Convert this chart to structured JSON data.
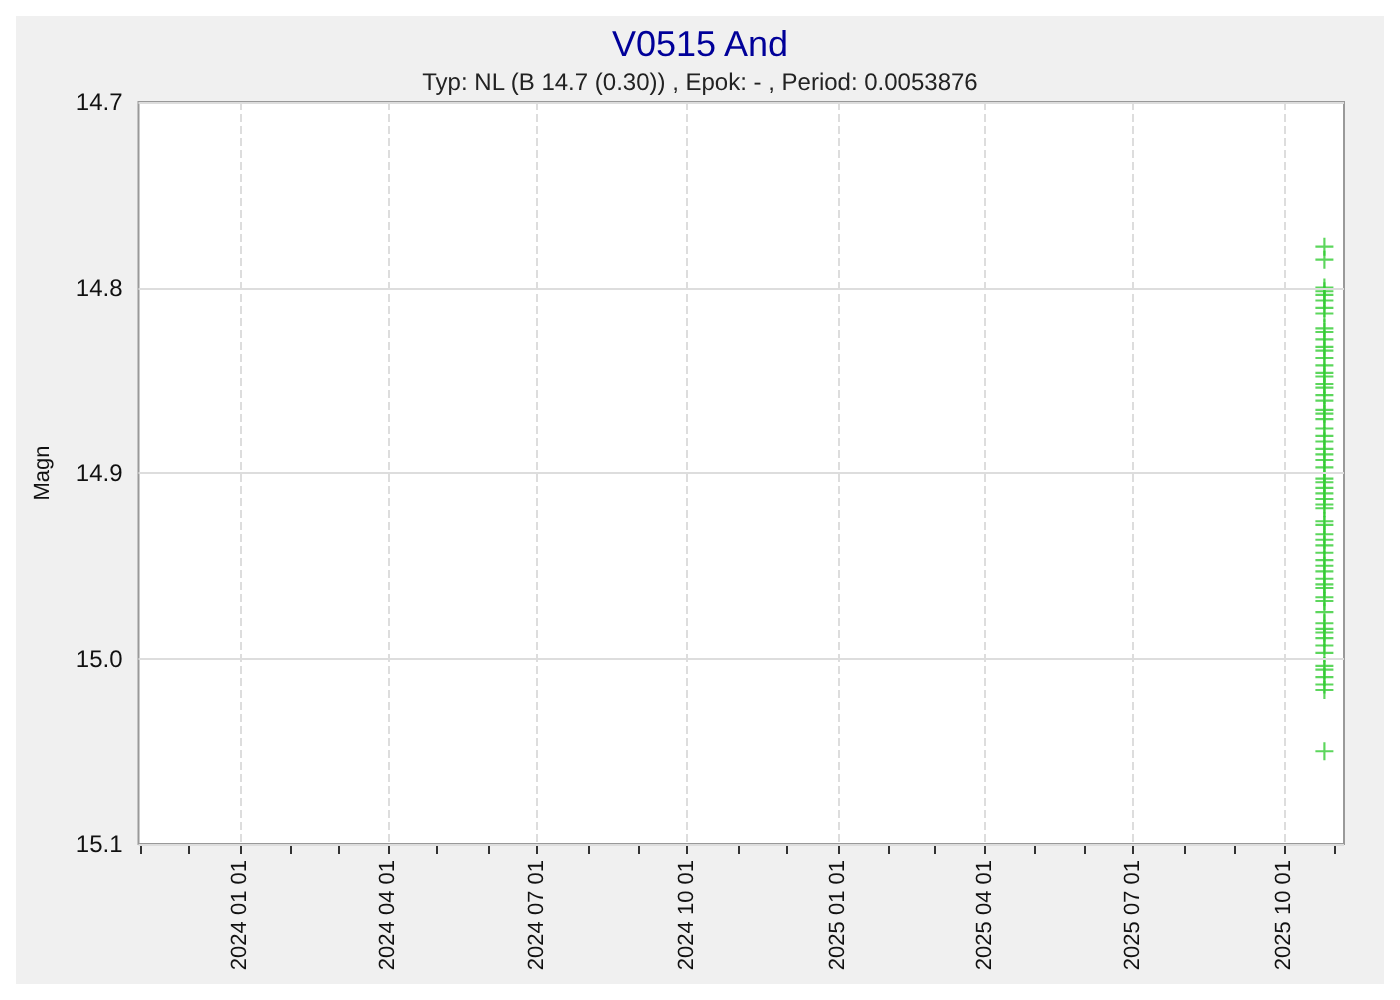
{
  "chart_data": {
    "type": "scatter",
    "title": "V0515 And",
    "subtitle": "Typ: NL (B 14.7 (0.30)) , Epok: - , Period: 0.0053876",
    "ylabel": "Magn",
    "x": [
      "2025-10-26",
      "2025-10-26",
      "2025-10-26",
      "2025-10-26",
      "2025-10-26",
      "2025-10-26",
      "2025-10-26",
      "2025-10-26",
      "2025-10-26",
      "2025-10-26",
      "2025-10-26",
      "2025-10-26",
      "2025-10-26",
      "2025-10-26",
      "2025-10-26",
      "2025-10-26",
      "2025-10-26",
      "2025-10-26",
      "2025-10-26",
      "2025-10-26",
      "2025-10-26",
      "2025-10-26",
      "2025-10-26",
      "2025-10-26",
      "2025-10-26",
      "2025-10-26",
      "2025-10-26",
      "2025-10-26",
      "2025-10-26",
      "2025-10-26",
      "2025-10-26",
      "2025-10-26",
      "2025-10-26",
      "2025-10-26",
      "2025-10-26",
      "2025-10-26",
      "2025-10-26",
      "2025-10-26",
      "2025-10-26",
      "2025-10-26",
      "2025-10-26",
      "2025-10-26",
      "2025-10-26",
      "2025-10-26",
      "2025-10-26",
      "2025-10-26",
      "2025-10-26",
      "2025-10-26",
      "2025-10-26",
      "2025-10-26",
      "2025-10-26",
      "2025-10-26",
      "2025-10-26",
      "2025-10-26",
      "2025-10-26",
      "2025-10-26",
      "2025-10-26",
      "2025-10-26",
      "2025-10-26",
      "2025-10-26",
      "2025-10-26",
      "2025-10-26",
      "2025-10-26",
      "2025-10-26",
      "2025-10-26",
      "2025-10-26"
    ],
    "values": [
      14.778,
      14.785,
      14.8,
      14.802,
      14.804,
      14.807,
      14.811,
      14.814,
      14.822,
      14.824,
      14.828,
      14.832,
      14.834,
      14.838,
      14.842,
      14.846,
      14.848,
      14.852,
      14.854,
      14.858,
      14.861,
      14.866,
      14.868,
      14.871,
      14.876,
      14.88,
      14.883,
      14.887,
      14.89,
      14.893,
      14.897,
      14.9,
      14.903,
      14.905,
      14.908,
      14.911,
      14.914,
      14.917,
      14.919,
      14.926,
      14.928,
      14.933,
      14.936,
      14.939,
      14.943,
      14.947,
      14.95,
      14.953,
      14.957,
      14.96,
      14.962,
      14.967,
      14.969,
      14.975,
      14.981,
      14.984,
      14.986,
      14.989,
      14.993,
      14.997,
      15.004,
      15.006,
      15.01,
      15.014,
      15.017,
      15.05
    ],
    "color": "#33cc33",
    "marker": "cross",
    "grid": true,
    "xlim": [
      "2023-10-31",
      "2025-11-07"
    ],
    "xticks": [
      {
        "value": "2023-11-01",
        "label": null
      },
      {
        "value": "2023-12-01",
        "label": null
      },
      {
        "value": "2024-01-01",
        "label": "2024 01 01"
      },
      {
        "value": "2024-02-01",
        "label": null
      },
      {
        "value": "2024-03-01",
        "label": null
      },
      {
        "value": "2024-04-01",
        "label": "2024 04 01"
      },
      {
        "value": "2024-05-01",
        "label": null
      },
      {
        "value": "2024-06-01",
        "label": null
      },
      {
        "value": "2024-07-01",
        "label": "2024 07 01"
      },
      {
        "value": "2024-08-01",
        "label": null
      },
      {
        "value": "2024-09-01",
        "label": null
      },
      {
        "value": "2024-10-01",
        "label": "2024 10 01"
      },
      {
        "value": "2024-11-01",
        "label": null
      },
      {
        "value": "2024-12-01",
        "label": null
      },
      {
        "value": "2025-01-01",
        "label": "2025 01 01"
      },
      {
        "value": "2025-02-01",
        "label": null
      },
      {
        "value": "2025-03-01",
        "label": null
      },
      {
        "value": "2025-04-01",
        "label": "2025 04 01"
      },
      {
        "value": "2025-05-01",
        "label": null
      },
      {
        "value": "2025-06-01",
        "label": null
      },
      {
        "value": "2025-07-01",
        "label": "2025 07 01"
      },
      {
        "value": "2025-08-01",
        "label": null
      },
      {
        "value": "2025-09-01",
        "label": null
      },
      {
        "value": "2025-10-01",
        "label": "2025 10 01"
      },
      {
        "value": "2025-11-01",
        "label": null
      }
    ],
    "ylim": [
      15.1,
      14.7
    ],
    "yticks": [
      14.7,
      14.8,
      14.9,
      {
        "value": 15,
        "label": "15.0"
      },
      15.1
    ]
  }
}
